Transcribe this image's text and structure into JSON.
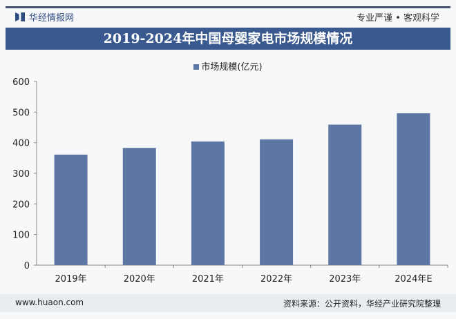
{
  "header": {
    "brand": "华经情报网",
    "slogan": "专业严谨 • 客观科学"
  },
  "chart_data": {
    "type": "bar",
    "title": "2019-2024年中国母婴家电市场规模情况",
    "categories": [
      "2019年",
      "2020年",
      "2021年",
      "2022年",
      "2023年",
      "2024年E"
    ],
    "series": [
      {
        "name": "市场规模(亿元)",
        "values": [
          361,
          383,
          404,
          411,
          459,
          496
        ],
        "color": "#5e76a3"
      }
    ],
    "ylim": [
      0,
      600
    ],
    "yticks": [
      0,
      100,
      200,
      300,
      400,
      500,
      600
    ],
    "legend": "top",
    "grid": false
  },
  "footer": {
    "website": "www.huaon.com",
    "source": "资料来源：公开资料，华经产业研究院整理"
  }
}
